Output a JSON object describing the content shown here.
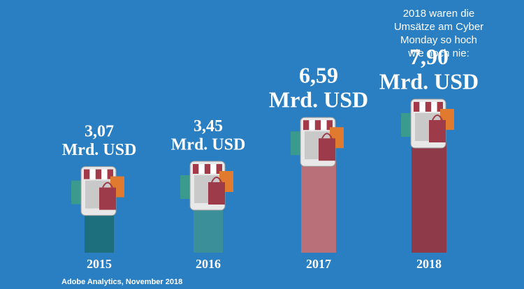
{
  "chart_data": {
    "type": "bar",
    "annotation": [
      "2018 waren die",
      "Umsätze am Cyber",
      "Monday so hoch",
      "wie noch nie:"
    ],
    "categories": [
      "2015",
      "2016",
      "2017",
      "2018"
    ],
    "values": [
      3.07,
      3.45,
      6.59,
      7.9
    ],
    "value_labels": [
      "3,07",
      "3,45",
      "6,59",
      "7,90"
    ],
    "value_unit": "Mrd. USD",
    "colors": [
      "#1e6f7e",
      "#3b8f98",
      "#b97079",
      "#8e3a49"
    ],
    "source": "Adobe Analytics, November 2018"
  }
}
